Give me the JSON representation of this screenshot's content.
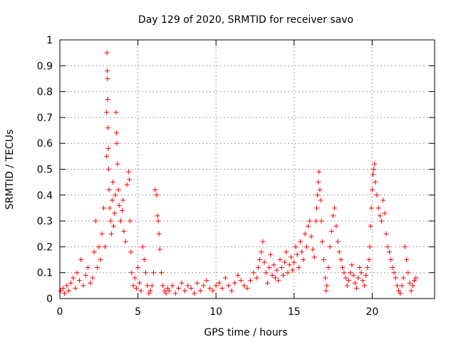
{
  "chart_data": {
    "type": "scatter",
    "title": "Day 129 of 2020, SRMTID for receiver savo",
    "xlabel": "GPS time / hours",
    "ylabel": "SRMTID / TECUs",
    "xlim": [
      0,
      24
    ],
    "ylim": [
      0,
      1
    ],
    "xticks": [
      0,
      5,
      10,
      15,
      20
    ],
    "xtick_labels": [
      "0",
      "5",
      "10",
      "15",
      "20"
    ],
    "yticks": [
      0,
      0.1,
      0.2,
      0.3,
      0.4,
      0.5,
      0.6,
      0.7,
      0.8,
      0.9,
      1
    ],
    "ytick_labels": [
      "0",
      "0.1",
      "0.2",
      "0.3",
      "0.4",
      "0.5",
      "0.6",
      "0.7",
      "0.8",
      "0.9",
      "1"
    ],
    "grid": true,
    "marker": "+",
    "color": "#ff0000",
    "series": [
      {
        "name": "SRMTID",
        "x": [
          0.05,
          0.2,
          0.3,
          0.45,
          0.55,
          0.7,
          0.85,
          1.0,
          1.1,
          1.25,
          1.35,
          1.5,
          1.65,
          1.8,
          1.95,
          2.1,
          2.2,
          2.3,
          2.4,
          2.5,
          2.6,
          2.7,
          2.8,
          2.9,
          3.0,
          3.0,
          3.02,
          3.04,
          3.05,
          3.06,
          3.08,
          3.1,
          3.12,
          3.15,
          3.2,
          3.25,
          3.3,
          3.35,
          3.4,
          3.45,
          3.5,
          3.55,
          3.6,
          3.62,
          3.65,
          3.7,
          3.75,
          3.8,
          3.9,
          4.0,
          4.05,
          4.1,
          4.2,
          4.3,
          4.4,
          4.45,
          4.5,
          4.55,
          4.6,
          4.7,
          4.8,
          4.9,
          5.0,
          5.1,
          5.2,
          5.3,
          5.4,
          5.5,
          5.6,
          5.7,
          5.8,
          5.9,
          6.0,
          6.1,
          6.2,
          6.25,
          6.3,
          6.35,
          6.4,
          6.5,
          6.6,
          6.7,
          6.8,
          6.9,
          7.0,
          7.2,
          7.4,
          7.6,
          7.8,
          8.0,
          8.2,
          8.4,
          8.6,
          8.8,
          9.0,
          9.2,
          9.4,
          9.6,
          9.8,
          10.0,
          10.2,
          10.4,
          10.6,
          10.8,
          11.0,
          11.2,
          11.4,
          11.6,
          11.8,
          12.0,
          12.2,
          12.4,
          12.6,
          12.7,
          12.8,
          12.9,
          13.0,
          13.1,
          13.2,
          13.3,
          13.4,
          13.5,
          13.6,
          13.7,
          13.8,
          13.9,
          14.0,
          14.1,
          14.2,
          14.3,
          14.4,
          14.5,
          14.6,
          14.7,
          14.8,
          14.9,
          15.0,
          15.1,
          15.2,
          15.3,
          15.4,
          15.5,
          15.6,
          15.7,
          15.8,
          15.9,
          16.0,
          16.1,
          16.2,
          16.3,
          16.4,
          16.45,
          16.5,
          16.55,
          16.6,
          16.65,
          16.7,
          16.75,
          16.8,
          16.9,
          17.0,
          17.05,
          17.1,
          17.2,
          17.3,
          17.4,
          17.5,
          17.6,
          17.7,
          17.8,
          17.9,
          18.0,
          18.1,
          18.2,
          18.3,
          18.4,
          18.5,
          18.6,
          18.7,
          18.8,
          18.9,
          19.0,
          19.1,
          19.2,
          19.3,
          19.4,
          19.5,
          19.6,
          19.7,
          19.8,
          19.85,
          19.9,
          19.95,
          20.0,
          20.05,
          20.1,
          20.15,
          20.2,
          20.3,
          20.4,
          20.5,
          20.6,
          20.7,
          20.8,
          20.9,
          21.0,
          21.1,
          21.2,
          21.3,
          21.4,
          21.5,
          21.6,
          21.7,
          21.8,
          21.9,
          22.0,
          22.1,
          22.2,
          22.3,
          22.4,
          22.5,
          22.6,
          22.7,
          22.8
        ],
        "y": [
          0.03,
          0.04,
          0.02,
          0.05,
          0.03,
          0.06,
          0.08,
          0.04,
          0.1,
          0.07,
          0.15,
          0.05,
          0.09,
          0.12,
          0.06,
          0.08,
          0.18,
          0.3,
          0.12,
          0.2,
          0.15,
          0.25,
          0.35,
          0.2,
          0.55,
          0.72,
          0.95,
          0.88,
          0.85,
          0.77,
          0.66,
          0.58,
          0.5,
          0.42,
          0.35,
          0.3,
          0.25,
          0.38,
          0.45,
          0.28,
          0.33,
          0.4,
          0.72,
          0.64,
          0.6,
          0.52,
          0.42,
          0.36,
          0.3,
          0.34,
          0.38,
          0.26,
          0.22,
          0.44,
          0.49,
          0.46,
          0.3,
          0.18,
          0.1,
          0.05,
          0.08,
          0.04,
          0.12,
          0.06,
          0.03,
          0.2,
          0.15,
          0.1,
          0.05,
          0.02,
          0.03,
          0.05,
          0.1,
          0.42,
          0.4,
          0.32,
          0.3,
          0.25,
          0.19,
          0.1,
          0.05,
          0.03,
          0.02,
          0.04,
          0.03,
          0.05,
          0.02,
          0.04,
          0.06,
          0.03,
          0.05,
          0.04,
          0.02,
          0.06,
          0.03,
          0.05,
          0.07,
          0.04,
          0.03,
          0.05,
          0.06,
          0.04,
          0.08,
          0.05,
          0.03,
          0.06,
          0.09,
          0.07,
          0.05,
          0.04,
          0.07,
          0.1,
          0.08,
          0.12,
          0.15,
          0.18,
          0.22,
          0.14,
          0.1,
          0.06,
          0.12,
          0.17,
          0.09,
          0.13,
          0.08,
          0.11,
          0.07,
          0.15,
          0.12,
          0.09,
          0.14,
          0.18,
          0.1,
          0.13,
          0.16,
          0.11,
          0.14,
          0.2,
          0.17,
          0.12,
          0.22,
          0.18,
          0.15,
          0.25,
          0.2,
          0.28,
          0.3,
          0.24,
          0.19,
          0.16,
          0.3,
          0.35,
          0.4,
          0.45,
          0.49,
          0.42,
          0.38,
          0.3,
          0.22,
          0.15,
          0.08,
          0.03,
          0.05,
          0.12,
          0.2,
          0.26,
          0.32,
          0.35,
          0.28,
          0.22,
          0.18,
          0.15,
          0.12,
          0.1,
          0.08,
          0.05,
          0.07,
          0.1,
          0.13,
          0.09,
          0.06,
          0.04,
          0.08,
          0.12,
          0.1,
          0.07,
          0.05,
          0.09,
          0.12,
          0.15,
          0.2,
          0.28,
          0.35,
          0.42,
          0.48,
          0.5,
          0.52,
          0.45,
          0.4,
          0.35,
          0.32,
          0.3,
          0.38,
          0.33,
          0.25,
          0.2,
          0.18,
          0.15,
          0.12,
          0.1,
          0.08,
          0.05,
          0.03,
          0.02,
          0.05,
          0.08,
          0.2,
          0.15,
          0.1,
          0.06,
          0.03,
          0.05,
          0.07,
          0.08
        ]
      }
    ]
  }
}
